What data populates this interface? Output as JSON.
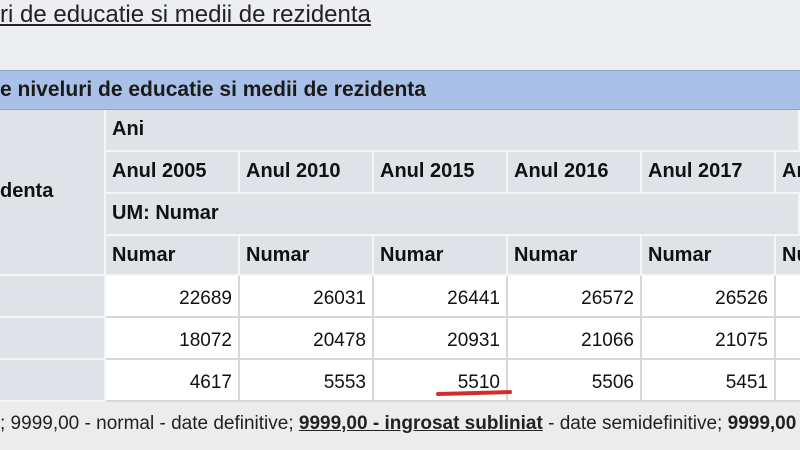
{
  "page": {
    "title": "ri de educatie si medii de rezidenta"
  },
  "table": {
    "title": "e niveluri de educatie si medii de rezidenta",
    "stub_label": "denta",
    "group_label": "Ani",
    "years": [
      "Anul 2005",
      "Anul 2010",
      "Anul 2015",
      "Anul 2016",
      "Anul 2017",
      "An"
    ],
    "um_label": "UM: Numar",
    "units": [
      "Numar",
      "Numar",
      "Numar",
      "Numar",
      "Numar",
      "Nu"
    ],
    "rows": [
      [
        "22689",
        "26031",
        "26441",
        "26572",
        "26526"
      ],
      [
        "18072",
        "20478",
        "20931",
        "21066",
        "21075"
      ],
      [
        "4617",
        "5553",
        "5510",
        "5506",
        "5451"
      ]
    ]
  },
  "footer": {
    "part1": "; 9999,00 - normal - date definitive;",
    "part2": "9999,00 - ingrosat subliniat",
    "part3": "- date semidefinitive;",
    "part4": "9999,00 - ingr"
  }
}
